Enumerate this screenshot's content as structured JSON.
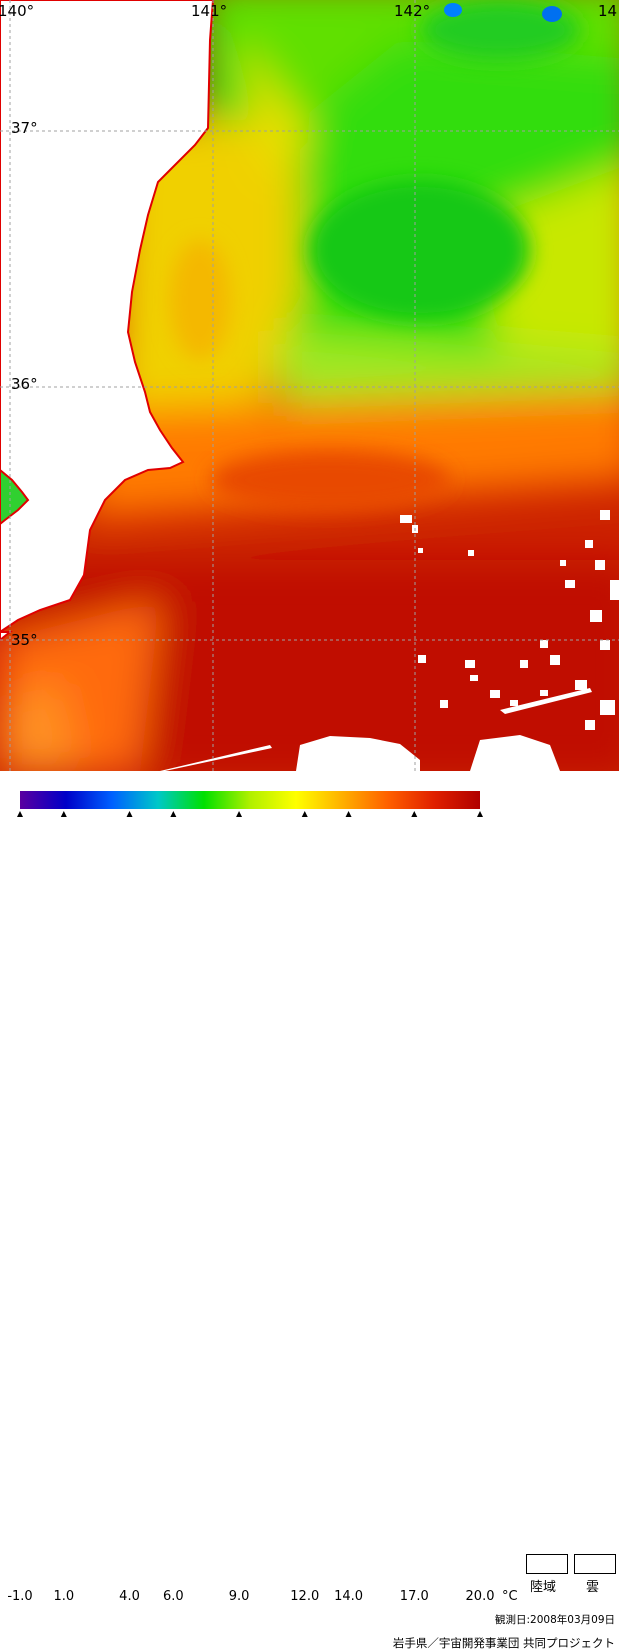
{
  "map": {
    "lon_labels": [
      "140°",
      "141°",
      "142°",
      "14"
    ],
    "lat_labels": [
      "37°",
      "36°",
      "35°"
    ]
  },
  "colorbar": {
    "stops": [
      "#5a00a0",
      "#0000c8",
      "#0060ff",
      "#00c8c8",
      "#00e000",
      "#b0f000",
      "#ffff00",
      "#ffb000",
      "#ff6000",
      "#e02000",
      "#b00000"
    ],
    "ticks": [
      "-1.0",
      "1.0",
      "4.0",
      "6.0",
      "9.0",
      "12.0",
      "14.0",
      "17.0",
      "20.0"
    ],
    "unit": "°C"
  },
  "legend": {
    "land": "陸域",
    "cloud": "雲"
  },
  "observation_date": "観測日:2008年03月09日",
  "credit": "岩手県／宇宙開発事業団  共同プロジェクト",
  "colors": {
    "coastline": "#e00000",
    "grid": "#a0a0a0",
    "land": "#ffffff"
  }
}
